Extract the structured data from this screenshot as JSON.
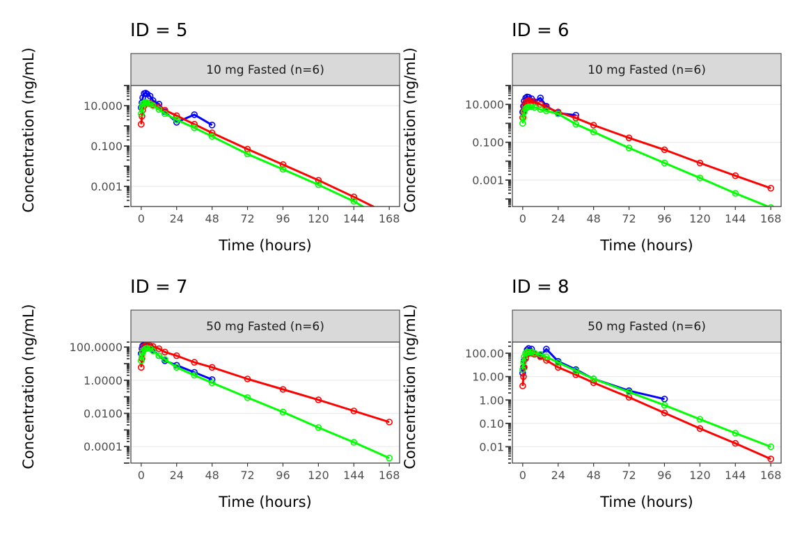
{
  "colors": {
    "observed": "#0000ff",
    "model_a": "#ff0000",
    "model_b": "#00ff00",
    "strip_bg": "#d9d9d9",
    "grid": "#ebebeb"
  },
  "chart_data": [
    {
      "type": "line",
      "y_scale": "log10",
      "grid": true,
      "title": "ID = 5",
      "strip": "10 mg Fasted (n=6)",
      "xlabel": "Time (hours)",
      "ylabel": "Concentration (ng/mL)",
      "xlim": [
        -7,
        175
      ],
      "ylim": [
        0.0001,
        100
      ],
      "x_ticks": [
        0,
        24,
        48,
        72,
        96,
        120,
        144,
        168
      ],
      "x_tick_labels": [
        "0",
        "24",
        "48",
        "72",
        "96",
        "120",
        "144",
        "168"
      ],
      "y_ticks": [
        10,
        0.1,
        0.001
      ],
      "y_tick_labels": [
        "10.000",
        "0.100",
        "0.001"
      ],
      "series": [
        {
          "color": "#0000ff",
          "x": [
            0,
            0.5,
            1,
            2,
            3,
            4,
            6,
            8,
            12,
            16,
            24,
            36,
            48
          ],
          "y": [
            8,
            14,
            25,
            40,
            42,
            38,
            30,
            18,
            12,
            5,
            1.5,
            3.6,
            1.1
          ]
        },
        {
          "color": "#ff0000",
          "x": [
            0,
            0.5,
            1,
            2,
            3,
            4,
            6,
            8,
            12,
            16,
            24,
            36,
            48,
            72,
            96,
            120,
            144,
            168
          ],
          "y": [
            1.2,
            3,
            6,
            10,
            13,
            14,
            13,
            11,
            8.5,
            6,
            3.2,
            1.2,
            0.45,
            0.07,
            0.012,
            0.002,
            0.0003,
            4e-05
          ]
        },
        {
          "color": "#00ff00",
          "x": [
            0,
            0.5,
            1,
            2,
            3,
            4,
            6,
            8,
            12,
            16,
            24,
            36,
            48,
            72,
            96,
            120,
            144,
            168
          ],
          "y": [
            4,
            8,
            12,
            14,
            14.5,
            14,
            12,
            10,
            6.5,
            4,
            2,
            0.8,
            0.3,
            0.04,
            0.007,
            0.0012,
            0.00018,
            1.8e-05
          ]
        }
      ]
    },
    {
      "type": "line",
      "y_scale": "log10",
      "grid": true,
      "title": "ID = 6",
      "strip": "10 mg Fasted (n=6)",
      "xlabel": "Time (hours)",
      "ylabel": "Concentration (ng/mL)",
      "xlim": [
        -7,
        175
      ],
      "ylim": [
        4e-05,
        100
      ],
      "x_ticks": [
        0,
        24,
        48,
        72,
        96,
        120,
        144,
        168
      ],
      "x_tick_labels": [
        "0",
        "24",
        "48",
        "72",
        "96",
        "120",
        "144",
        "168"
      ],
      "y_ticks": [
        10,
        0.1,
        0.001
      ],
      "y_tick_labels": [
        "10.000",
        "0.100",
        "0.001"
      ],
      "series": [
        {
          "color": "#0000ff",
          "x": [
            0,
            0.5,
            1,
            2,
            3,
            4,
            6,
            8,
            12,
            16,
            24,
            36
          ],
          "y": [
            4,
            8,
            15,
            22,
            25,
            24,
            20,
            14,
            22,
            8,
            3.5,
            2.7
          ]
        },
        {
          "color": "#ff0000",
          "x": [
            0,
            0.5,
            1,
            2,
            3,
            4,
            6,
            8,
            12,
            16,
            24,
            36,
            48,
            72,
            96,
            120,
            144,
            168
          ],
          "y": [
            2,
            4,
            8,
            13,
            15,
            16,
            15,
            13,
            10,
            7,
            4,
            1.9,
            0.8,
            0.17,
            0.04,
            0.008,
            0.0017,
            0.00037
          ]
        },
        {
          "color": "#00ff00",
          "x": [
            0,
            0.5,
            1,
            2,
            3,
            4,
            6,
            8,
            12,
            16,
            24,
            36,
            48,
            72,
            96,
            120,
            144,
            168
          ],
          "y": [
            1,
            2,
            4,
            6,
            7,
            7.5,
            7.5,
            7,
            5.5,
            4.5,
            3.2,
            0.9,
            0.35,
            0.05,
            0.008,
            0.0013,
            0.0002,
            3.5e-05
          ]
        }
      ]
    },
    {
      "type": "line",
      "y_scale": "log10",
      "grid": true,
      "title": "ID = 7",
      "strip": "50 mg Fasted (n=6)",
      "xlabel": "Time (hours)",
      "ylabel": "Concentration (ng/mL)",
      "xlim": [
        -7,
        175
      ],
      "ylim": [
        1e-05,
        200
      ],
      "x_ticks": [
        0,
        24,
        48,
        72,
        96,
        120,
        144,
        168
      ],
      "x_tick_labels": [
        "0",
        "24",
        "48",
        "72",
        "96",
        "120",
        "144",
        "168"
      ],
      "y_ticks": [
        100,
        1,
        0.01,
        0.0001
      ],
      "y_tick_labels": [
        "100.0000",
        "1.0000",
        "0.0100",
        "0.0001"
      ],
      "series": [
        {
          "color": "#0000ff",
          "x": [
            0,
            0.5,
            1,
            2,
            3,
            4,
            6,
            8,
            12,
            16,
            24,
            36,
            48
          ],
          "y": [
            40,
            80,
            120,
            130,
            125,
            120,
            100,
            70,
            30,
            15,
            8,
            3,
            1.1
          ]
        },
        {
          "color": "#ff0000",
          "x": [
            0,
            0.5,
            1,
            2,
            3,
            4,
            6,
            8,
            12,
            16,
            24,
            36,
            48,
            72,
            96,
            120,
            144,
            168
          ],
          "y": [
            6,
            20,
            60,
            110,
            125,
            130,
            120,
            110,
            80,
            50,
            30,
            12,
            6,
            1.2,
            0.28,
            0.065,
            0.014,
            0.003
          ]
        },
        {
          "color": "#00ff00",
          "x": [
            0,
            0.5,
            1,
            2,
            3,
            4,
            6,
            8,
            12,
            16,
            24,
            36,
            48,
            72,
            96,
            120,
            144,
            168
          ],
          "y": [
            15,
            30,
            50,
            70,
            80,
            85,
            80,
            60,
            30,
            18,
            6,
            2,
            0.7,
            0.09,
            0.012,
            0.0014,
            0.00018,
            2e-05
          ]
        }
      ]
    },
    {
      "type": "line",
      "y_scale": "log10",
      "grid": true,
      "title": "ID = 8",
      "strip": "50 mg Fasted (n=6)",
      "xlabel": "Time (hours)",
      "ylabel": "Concentration (ng/mL)",
      "xlim": [
        -7,
        175
      ],
      "ylim": [
        0.002,
        300
      ],
      "x_ticks": [
        0,
        24,
        48,
        72,
        96,
        120,
        144,
        168
      ],
      "x_tick_labels": [
        "0",
        "24",
        "48",
        "72",
        "96",
        "120",
        "144",
        "168"
      ],
      "y_ticks": [
        100,
        10,
        1,
        0.1,
        0.01
      ],
      "y_tick_labels": [
        "100.00",
        "10.00",
        "1.00",
        "0.10",
        "0.01"
      ],
      "series": [
        {
          "color": "#0000ff",
          "x": [
            0,
            0.5,
            1,
            2,
            3,
            4,
            6,
            8,
            12,
            16,
            24,
            36,
            48,
            72,
            96
          ],
          "y": [
            14,
            25,
            50,
            100,
            140,
            160,
            150,
            100,
            80,
            150,
            45,
            20,
            8,
            2.5,
            1.1
          ]
        },
        {
          "color": "#ff0000",
          "x": [
            0,
            0.5,
            1,
            2,
            3,
            4,
            6,
            8,
            12,
            16,
            24,
            36,
            48,
            72,
            96,
            120,
            144,
            168
          ],
          "y": [
            4,
            10,
            25,
            60,
            90,
            100,
            100,
            90,
            70,
            50,
            25,
            12,
            5.5,
            1.3,
            0.28,
            0.06,
            0.014,
            0.003
          ]
        },
        {
          "color": "#00ff00",
          "x": [
            0,
            0.5,
            1,
            2,
            3,
            4,
            6,
            8,
            12,
            16,
            24,
            36,
            48,
            72,
            96,
            120,
            144,
            168
          ],
          "y": [
            20,
            40,
            70,
            100,
            110,
            110,
            110,
            100,
            90,
            70,
            40,
            18,
            8,
            2.2,
            0.6,
            0.15,
            0.038,
            0.01
          ]
        }
      ]
    }
  ]
}
